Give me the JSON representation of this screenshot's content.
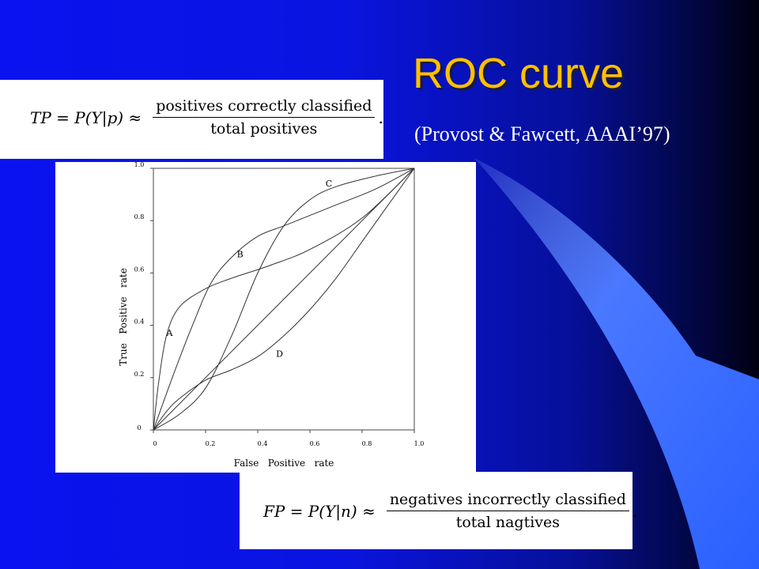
{
  "slide": {
    "title": "ROC curve",
    "subtitle": "(Provost & Fawcett, AAAI’97)"
  },
  "formula_tp": {
    "lhs": "TP = P(Y|p) ≈",
    "numerator": "positives correctly classified",
    "denominator": "total positives",
    "terminator": "."
  },
  "formula_fp": {
    "lhs": "FP = P(Y|n) ≈",
    "numerator": "negatives incorrectly classified",
    "denominator": "total nagtives",
    "terminator": "."
  },
  "colors": {
    "title": "#ffc000",
    "sweep_light": "#4a78ff",
    "sweep_mid": "#2a50f0"
  },
  "chart_data": {
    "type": "line",
    "xlabel": "False   Positive   rate",
    "ylabel": "True   Positive   rate",
    "xlim": [
      0,
      1
    ],
    "ylim": [
      0,
      1
    ],
    "grid": false,
    "x_ticks": [
      "0",
      "0.2",
      "0.4",
      "0.6",
      "0.8",
      "1.0"
    ],
    "y_ticks": [
      "0",
      "0.2",
      "0.4",
      "0.6",
      "0.8",
      "1.0"
    ],
    "x_tick_values": [
      0,
      0.2,
      0.4,
      0.6,
      0.8,
      1.0
    ],
    "y_tick_values": [
      0,
      0.2,
      0.4,
      0.6,
      0.8,
      1.0
    ],
    "series": [
      {
        "name": "A",
        "label_at": [
          0.05,
          0.36
        ],
        "points": [
          [
            0,
            0
          ],
          [
            0.02,
            0.18
          ],
          [
            0.05,
            0.36
          ],
          [
            0.1,
            0.47
          ],
          [
            0.2,
            0.54
          ],
          [
            0.3,
            0.58
          ],
          [
            0.45,
            0.63
          ],
          [
            0.6,
            0.69
          ],
          [
            0.8,
            0.81
          ],
          [
            1,
            1
          ]
        ]
      },
      {
        "name": "B",
        "label_at": [
          0.32,
          0.66
        ],
        "points": [
          [
            0,
            0
          ],
          [
            0.08,
            0.22
          ],
          [
            0.15,
            0.4
          ],
          [
            0.22,
            0.56
          ],
          [
            0.3,
            0.66
          ],
          [
            0.4,
            0.74
          ],
          [
            0.5,
            0.78
          ],
          [
            0.6,
            0.82
          ],
          [
            0.7,
            0.86
          ],
          [
            0.85,
            0.92
          ],
          [
            1,
            1
          ]
        ]
      },
      {
        "name": "C",
        "label_at": [
          0.66,
          0.93
        ],
        "points": [
          [
            0,
            0
          ],
          [
            0.1,
            0.06
          ],
          [
            0.2,
            0.16
          ],
          [
            0.3,
            0.36
          ],
          [
            0.4,
            0.6
          ],
          [
            0.5,
            0.78
          ],
          [
            0.6,
            0.88
          ],
          [
            0.7,
            0.93
          ],
          [
            0.85,
            0.97
          ],
          [
            1,
            1
          ]
        ]
      },
      {
        "name": "D",
        "label_at": [
          0.47,
          0.28
        ],
        "points": [
          [
            0,
            0
          ],
          [
            0.05,
            0.07
          ],
          [
            0.1,
            0.12
          ],
          [
            0.2,
            0.19
          ],
          [
            0.3,
            0.23
          ],
          [
            0.4,
            0.28
          ],
          [
            0.5,
            0.36
          ],
          [
            0.6,
            0.46
          ],
          [
            0.7,
            0.58
          ],
          [
            0.8,
            0.72
          ],
          [
            0.9,
            0.86
          ],
          [
            1,
            1
          ]
        ]
      },
      {
        "name": "",
        "points": [
          [
            0,
            0
          ],
          [
            1,
            1
          ]
        ]
      }
    ]
  }
}
